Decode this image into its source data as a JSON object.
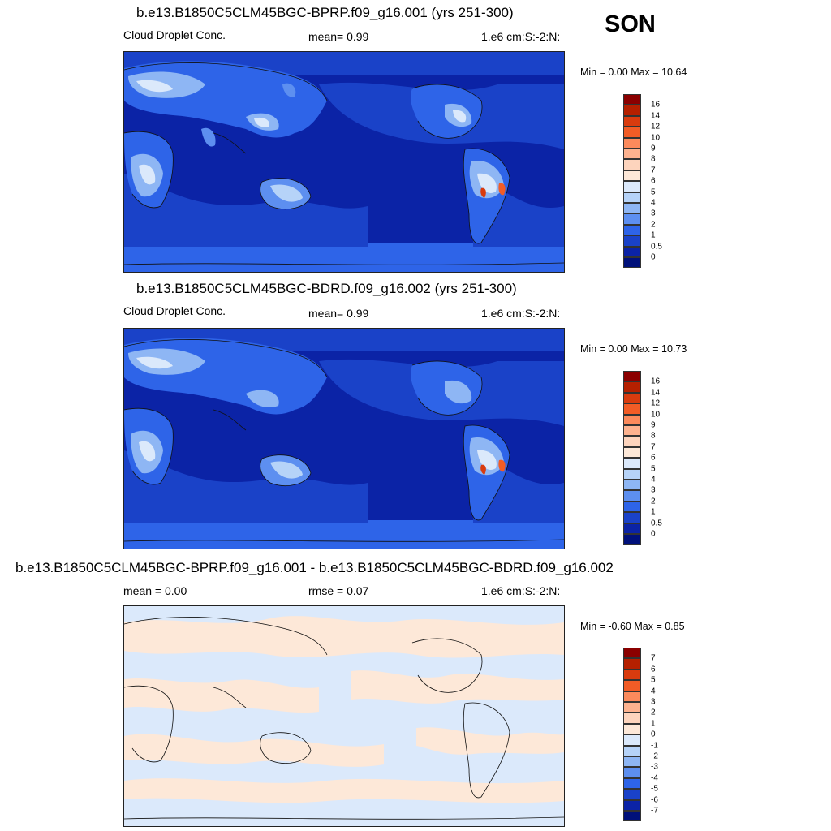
{
  "season": "SON",
  "panels": [
    {
      "title": "b.e13.B1850C5CLM45BGC-BPRP.f09_g16.001 (yrs 251-300)",
      "left_label": "Cloud Droplet Conc.",
      "center_label": "mean=   0.99",
      "units": "1.e6 cm:S:-2:N:",
      "minmax": "Min =   0.00 Max =  10.64",
      "colorbar_labels": [
        "16",
        "14",
        "12",
        "10",
        "9",
        "8",
        "7",
        "6",
        "5",
        "4",
        "3",
        "2",
        "1",
        "0.5",
        "0"
      ]
    },
    {
      "title": "b.e13.B1850C5CLM45BGC-BDRD.f09_g16.002 (yrs 251-300)",
      "left_label": "Cloud Droplet Conc.",
      "center_label": "mean=   0.99",
      "units": "1.e6 cm:S:-2:N:",
      "minmax": "Min =   0.00 Max =  10.73",
      "colorbar_labels": [
        "16",
        "14",
        "12",
        "10",
        "9",
        "8",
        "7",
        "6",
        "5",
        "4",
        "3",
        "2",
        "1",
        "0.5",
        "0"
      ]
    },
    {
      "title": "b.e13.B1850C5CLM45BGC-BPRP.f09_g16.001 - b.e13.B1850C5CLM45BGC-BDRD.f09_g16.002",
      "left_label": "mean =   0.00",
      "center_label": "rmse =   0.07",
      "units": "1.e6 cm:S:-2:N:",
      "minmax": "Min =  -0.60 Max =   0.85",
      "colorbar_labels": [
        "7",
        "6",
        "5",
        "4",
        "3",
        "2",
        "1",
        "0",
        "-1",
        "-2",
        "-3",
        "-4",
        "-5",
        "-6",
        "-7"
      ]
    }
  ],
  "colors": {
    "abs_scale": [
      "#8b0000",
      "#b52000",
      "#d93b0e",
      "#f25c26",
      "#fb8a5c",
      "#fdb28f",
      "#fdd4bd",
      "#fde8d8",
      "#dbe9fb",
      "#b6d3f8",
      "#8eb6f4",
      "#5d8ff0",
      "#2e64e8",
      "#1a42c8",
      "#0b23a6",
      "#00107a"
    ],
    "diff_scale": [
      "#8b0000",
      "#b52000",
      "#d93b0e",
      "#f25c26",
      "#fb8a5c",
      "#fdb28f",
      "#fdd4bd",
      "#fde8d8",
      "#dbe9fb",
      "#b6d3f8",
      "#8eb6f4",
      "#5d8ff0",
      "#2e64e8",
      "#1a42c8",
      "#0b23a6",
      "#00107a"
    ]
  }
}
